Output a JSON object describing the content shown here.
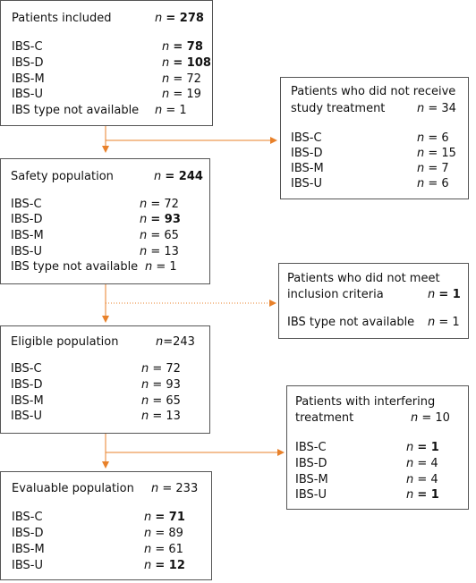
{
  "boxes": {
    "included": {
      "title": "Patients included",
      "title_value": "= 278",
      "rows": [
        {
          "label": "IBS-C",
          "value": "= 78"
        },
        {
          "label": "IBS-D",
          "value": "= 108"
        },
        {
          "label": "IBS-M",
          "value": "= 72"
        },
        {
          "label": "IBS-U",
          "value": "= 19"
        },
        {
          "label": "IBS type not available",
          "value": "= 1"
        }
      ]
    },
    "no_treatment": {
      "title_line1": "Patients who did not receive",
      "title_line2": "study treatment",
      "title_value": "= 34",
      "rows": [
        {
          "label": "IBS-C",
          "value": "= 6"
        },
        {
          "label": "IBS-D",
          "value": "= 15"
        },
        {
          "label": "IBS-M",
          "value": "= 7"
        },
        {
          "label": "IBS-U",
          "value": "= 6"
        }
      ]
    },
    "safety": {
      "title": "Safety population",
      "title_value": "= 244",
      "rows": [
        {
          "label": "IBS-C",
          "value": "= 72"
        },
        {
          "label": "IBS-D",
          "value": "= 93"
        },
        {
          "label": "IBS-M",
          "value": "= 65"
        },
        {
          "label": "IBS-U",
          "value": "= 13"
        },
        {
          "label": "IBS type not available",
          "value": "= 1"
        }
      ]
    },
    "not_eligible": {
      "title_line1": "Patients who did not meet",
      "title_line2": "inclusion criteria",
      "title_value": "= 1",
      "rows": [
        {
          "label": "IBS type not available",
          "value": "= 1"
        }
      ]
    },
    "eligible": {
      "title": "Eligible population",
      "title_value": "=243",
      "rows": [
        {
          "label": "IBS-C",
          "value": "= 72"
        },
        {
          "label": "IBS-D",
          "value": "= 93"
        },
        {
          "label": "IBS-M",
          "value": "= 65"
        },
        {
          "label": "IBS-U",
          "value": "= 13"
        }
      ]
    },
    "interfering": {
      "title_line1": "Patients with interfering",
      "title_line2": "treatment",
      "title_value": "= 10",
      "rows": [
        {
          "label": "IBS-C",
          "value": "= 1"
        },
        {
          "label": "IBS-D",
          "value": "= 4"
        },
        {
          "label": "IBS-M",
          "value": "= 4"
        },
        {
          "label": "IBS-U",
          "value": "= 1"
        }
      ]
    },
    "evaluable": {
      "title": "Evaluable population",
      "title_value": "= 233",
      "rows": [
        {
          "label": "IBS-C",
          "value": "= 71"
        },
        {
          "label": "IBS-D",
          "value": "= 89"
        },
        {
          "label": "IBS-M",
          "value": "= 61"
        },
        {
          "label": "IBS-U",
          "value": "= 12"
        }
      ]
    }
  },
  "n_symbol": "n",
  "colors": {
    "arrow": "#e8812a",
    "border": "#555555"
  }
}
